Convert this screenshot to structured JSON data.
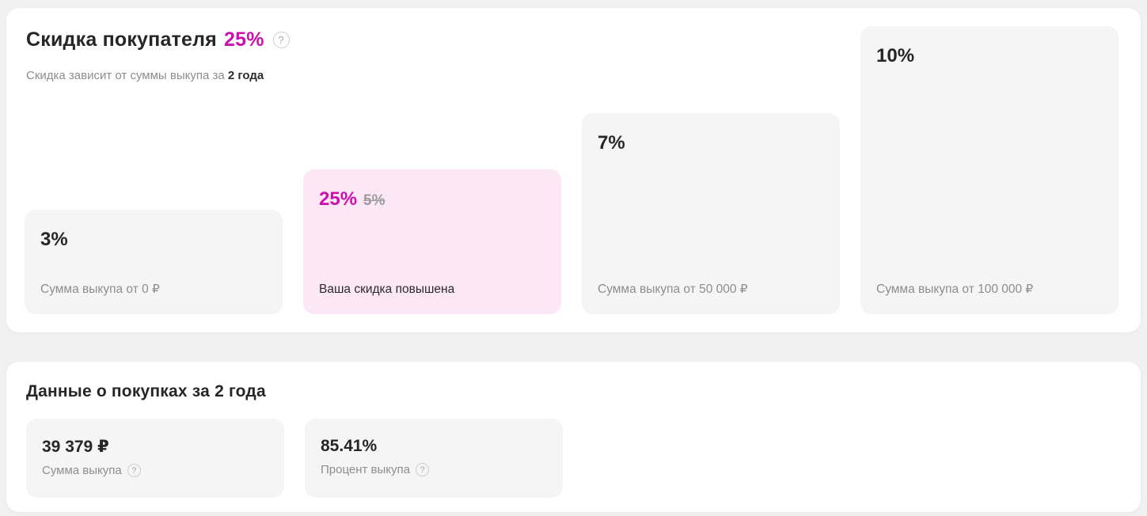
{
  "colors": {
    "accent": "#cb11ab",
    "highlight_card_bg": "#fce7f6",
    "card_bg": "#f5f5f6",
    "panel_bg": "#ffffff",
    "page_bg": "#f1f1f2",
    "text_dark": "#262626",
    "text_gray": "#8d8d8d"
  },
  "icons": {
    "question_glyph": "?"
  },
  "discount_section": {
    "title": "Скидка покупателя",
    "title_value": "25%",
    "subtitle_prefix": "Скидка зависит от суммы выкупа за",
    "subtitle_bold": "2 года",
    "tiers": [
      {
        "percent": "3%",
        "label": "Сумма выкупа от 0 ₽",
        "highlighted": false
      },
      {
        "percent": "25%",
        "old_percent": "5%",
        "label": "Ваша скидка повышена",
        "highlighted": true
      },
      {
        "percent": "7%",
        "label": "Сумма выкупа от 50 000 ₽",
        "highlighted": false
      },
      {
        "percent": "10%",
        "label": "Сумма выкупа от 100 000 ₽",
        "highlighted": false
      }
    ]
  },
  "purchases_section": {
    "title": "Данные о покупках за 2 года",
    "stats": [
      {
        "value": "39 379 ₽",
        "label": "Сумма выкупа"
      },
      {
        "value": "85.41%",
        "label": "Процент выкупа"
      }
    ]
  }
}
